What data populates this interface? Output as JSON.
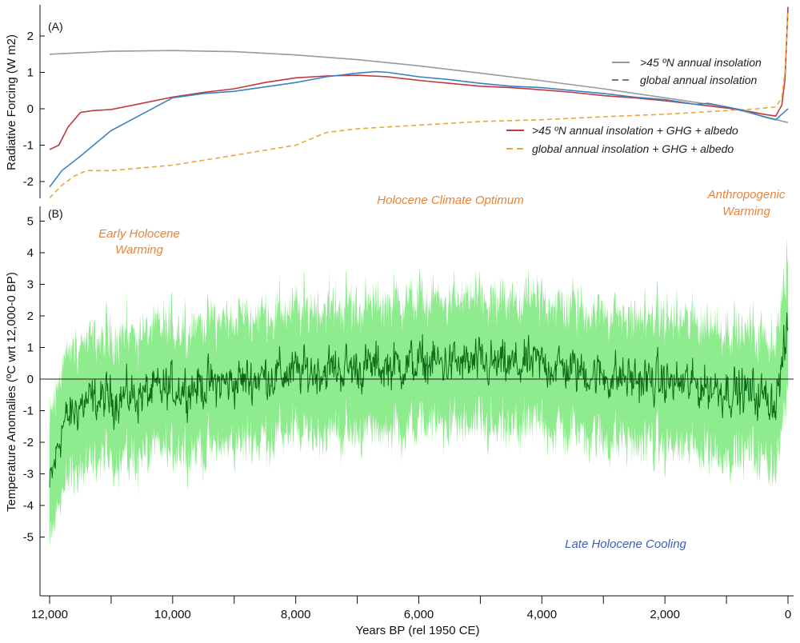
{
  "chart_data": [
    {
      "panel": "(A)",
      "type": "line",
      "ylabel": "Radiative Forcing (W m2)",
      "ylim": [
        -2.4,
        2.8
      ],
      "xlim": [
        12000,
        0
      ],
      "yticks": [
        "2",
        "1",
        "0",
        "-1",
        "-2"
      ],
      "ytick_values": [
        2,
        1,
        0,
        -1,
        -2
      ],
      "legend_position": "right",
      "series": [
        {
          "name": ">45 ºN annual insolation",
          "color": "#9a9a9a",
          "dash": "solid",
          "x": [
            12000,
            11000,
            10000,
            9000,
            8000,
            7000,
            6000,
            5000,
            4000,
            3000,
            2000,
            1000,
            0
          ],
          "y": [
            1.5,
            1.58,
            1.6,
            1.57,
            1.48,
            1.35,
            1.18,
            0.98,
            0.77,
            0.55,
            0.3,
            0.05,
            -0.38
          ]
        },
        {
          "name": "global annual insolation",
          "color": "#7a7a7a",
          "dash": "dashed",
          "x": [],
          "y": []
        },
        {
          "name": ">45 ºN annual insolation + GHG + albedo",
          "color": "#c0393b",
          "dash": "solid",
          "x": [
            12000,
            11850,
            11700,
            11500,
            11300,
            11000,
            10500,
            10000,
            9500,
            9000,
            8500,
            8000,
            7500,
            7000,
            6500,
            6000,
            5500,
            5000,
            4500,
            4000,
            3500,
            3000,
            2500,
            2000,
            1500,
            1000,
            700,
            400,
            200,
            100,
            50,
            20,
            0
          ],
          "y": [
            -1.12,
            -1.0,
            -0.5,
            -0.1,
            -0.05,
            -0.02,
            0.15,
            0.32,
            0.45,
            0.55,
            0.72,
            0.85,
            0.9,
            0.92,
            0.88,
            0.78,
            0.7,
            0.62,
            0.58,
            0.52,
            0.45,
            0.36,
            0.3,
            0.22,
            0.12,
            0.02,
            -0.05,
            -0.15,
            -0.2,
            0.1,
            0.8,
            2.0,
            2.8
          ]
        },
        {
          "name": "global annual insolation + GHG + albedo",
          "color": "#e8a93a",
          "dash": "dashed",
          "x": [
            12000,
            11800,
            11600,
            11400,
            11000,
            10000,
            9000,
            8000,
            7500,
            7000,
            6000,
            5000,
            4000,
            3000,
            2000,
            1500,
            1000,
            500,
            200,
            100,
            50,
            20,
            0
          ],
          "y": [
            -2.45,
            -2.1,
            -1.85,
            -1.7,
            -1.7,
            -1.55,
            -1.28,
            -1.0,
            -0.65,
            -0.55,
            -0.45,
            -0.35,
            -0.3,
            -0.22,
            -0.15,
            -0.1,
            -0.05,
            0.0,
            0.05,
            0.3,
            1.0,
            2.0,
            2.7
          ]
        },
        {
          "name": "",
          "color": "#3b82c4",
          "dash": "solid",
          "x": [
            12000,
            11800,
            11500,
            11000,
            10500,
            10000,
            9500,
            9000,
            8500,
            8000,
            7500,
            7000,
            6700,
            6500,
            6000,
            5500,
            5000,
            4500,
            4000,
            3500,
            3000,
            2500,
            2000,
            1500,
            1300,
            1000,
            700,
            400,
            200,
            100,
            0
          ],
          "y": [
            -2.15,
            -1.7,
            -1.3,
            -0.6,
            -0.15,
            0.3,
            0.42,
            0.48,
            0.6,
            0.72,
            0.88,
            0.98,
            1.02,
            1.0,
            0.88,
            0.8,
            0.7,
            0.62,
            0.58,
            0.5,
            0.42,
            0.32,
            0.25,
            0.12,
            0.15,
            0.05,
            -0.05,
            -0.22,
            -0.3,
            -0.15,
            0.0
          ]
        }
      ]
    },
    {
      "panel": "(B)",
      "type": "line",
      "ylabel": "Temperature Anomalies (ºC wrt 12,000-0 BP)",
      "xlabel": "Years BP (rel 1950 CE)",
      "ylim": [
        -7,
        5.5
      ],
      "xlim": [
        12000,
        0
      ],
      "yticks": [
        "5",
        "4",
        "3",
        "2",
        "1",
        "0",
        "-1",
        "-2",
        "-3",
        "-4",
        "-5"
      ],
      "ytick_values": [
        5,
        4,
        3,
        2,
        1,
        0,
        -1,
        -2,
        -3,
        -4,
        -5
      ],
      "xticks": [
        "12,000",
        "10,000",
        "8,000",
        "6,000",
        "4,000",
        "2,000",
        "0"
      ],
      "xtick_values": [
        12000,
        10000,
        8000,
        6000,
        4000,
        2000,
        0
      ],
      "series": [
        {
          "name": "",
          "color": "#0b6e16",
          "band_color": "#7ae87a",
          "mean_x": [
            12000,
            11800,
            11500,
            11000,
            10500,
            10000,
            9500,
            9000,
            8500,
            8000,
            7500,
            7000,
            6500,
            6000,
            5500,
            5000,
            4500,
            4000,
            3500,
            3000,
            2500,
            2000,
            1500,
            1000,
            500,
            200,
            0
          ],
          "mean_y": [
            -3.5,
            -1.5,
            -0.8,
            -0.6,
            -0.5,
            -0.3,
            -0.2,
            -0.1,
            0.1,
            0.2,
            0.3,
            0.35,
            0.4,
            0.5,
            0.5,
            0.45,
            0.4,
            0.5,
            0.3,
            0.1,
            0.0,
            -0.1,
            -0.2,
            -0.3,
            -0.5,
            -0.7,
            1.5
          ],
          "amplitude_sd": 0.6,
          "band_halfwidth": 2.0
        }
      ],
      "annotations": [
        {
          "text": "Early Holocene",
          "color": "#e8843a"
        },
        {
          "text": "Warming",
          "color": "#e8843a"
        },
        {
          "text": "Holocene Climate Optimum",
          "color": "#e8843a"
        },
        {
          "text": "Anthropogenic",
          "color": "#e8843a"
        },
        {
          "text": "Warming",
          "color": "#e8843a"
        },
        {
          "text": "Late Holocene Cooling",
          "color": "#3a5fbf"
        }
      ],
      "zero_line": true
    }
  ]
}
